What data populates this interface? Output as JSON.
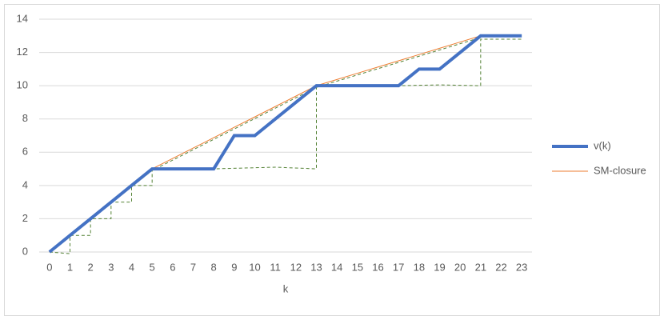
{
  "chart_data": {
    "type": "line",
    "x_label": "k",
    "categories": [
      0,
      1,
      2,
      3,
      4,
      5,
      6,
      7,
      8,
      9,
      10,
      11,
      12,
      13,
      14,
      15,
      16,
      17,
      18,
      19,
      20,
      21,
      22,
      23
    ],
    "ylim": [
      0,
      14
    ],
    "yticks": [
      0,
      2,
      4,
      6,
      8,
      10,
      12,
      14
    ],
    "grid": true,
    "series": [
      {
        "name": "v(k)",
        "color": "#4472c4",
        "width": 4,
        "values": [
          0,
          1,
          2,
          3,
          4,
          5,
          5,
          5,
          5,
          7,
          7,
          8,
          9,
          10,
          10,
          10,
          10,
          10,
          11,
          11,
          12,
          13,
          13,
          13
        ]
      },
      {
        "name": "SM-closure",
        "color": "#ed7d31",
        "width": 1,
        "values": [
          0,
          1,
          2,
          3,
          4,
          5,
          5.625,
          6.25,
          6.875,
          7.5,
          8.125,
          8.75,
          9.375,
          10,
          10.375,
          10.75,
          11.125,
          11.5,
          11.875,
          12.25,
          12.625,
          13,
          null,
          null
        ]
      },
      {
        "color": "#548235",
        "width": 1,
        "dashed": true,
        "x": [
          0,
          1,
          1,
          2,
          2,
          3,
          3,
          4,
          4,
          5,
          5,
          8,
          11,
          13,
          13,
          17,
          19,
          21,
          21,
          23
        ],
        "values": [
          0,
          -0.1,
          1,
          1,
          2,
          2,
          3,
          3,
          4,
          4,
          5,
          5,
          5.1,
          5,
          10,
          10,
          10.05,
          10,
          12.8,
          12.8
        ]
      },
      {
        "color": "#548235",
        "width": 1,
        "dashed": true,
        "x": [
          0,
          5,
          13,
          21
        ],
        "values": [
          0,
          4.9,
          9.9,
          12.9
        ]
      }
    ],
    "legend": "right"
  }
}
